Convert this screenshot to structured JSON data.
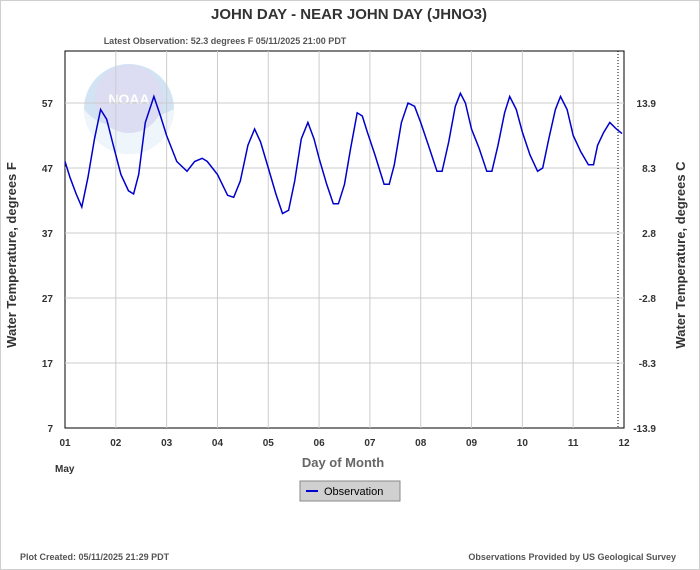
{
  "header": {
    "title": "JOHN DAY - NEAR JOHN DAY  (JHNO3)",
    "latest_observation": "Latest Observation: 52.3 degrees F 05/11/2025 21:00 PDT"
  },
  "footer": {
    "plot_created": "Plot Created: 05/11/2025 21:29 PDT",
    "provider": "Observations Provided by US Geological Survey"
  },
  "logo": {
    "text": "NOAA"
  },
  "colors": {
    "series": "#0000cc",
    "grid": "#cccccc",
    "axis": "#000000",
    "legend_bg": "#d0d0d0"
  },
  "chart_data": {
    "type": "line",
    "xlabel": "Day of Month",
    "x_sublabel": "May",
    "ylabel_left": "Water Temperature, degrees F",
    "ylabel_right": "Water Temperature, degrees C",
    "x_ticks": [
      "01",
      "02",
      "03",
      "04",
      "05",
      "06",
      "07",
      "08",
      "09",
      "10",
      "11",
      "12"
    ],
    "y_ticks_left": [
      "57",
      "47",
      "37",
      "27",
      "17",
      "7"
    ],
    "y_ticks_right": [
      "13.9",
      "8.3",
      "2.8",
      "-2.8",
      "-8.3",
      "-13.9"
    ],
    "xlim": [
      1,
      12
    ],
    "ylim": [
      7,
      65
    ],
    "grid": true,
    "legend": {
      "position": "bottom-center",
      "entries": [
        "Observation"
      ]
    },
    "series": [
      {
        "name": "Observation",
        "points": [
          [
            1.0,
            48.0
          ],
          [
            1.1,
            45.5
          ],
          [
            1.22,
            43.0
          ],
          [
            1.33,
            41.0
          ],
          [
            1.45,
            45.5
          ],
          [
            1.58,
            51.5
          ],
          [
            1.7,
            56.0
          ],
          [
            1.82,
            54.5
          ],
          [
            1.95,
            50.5
          ],
          [
            2.1,
            46.0
          ],
          [
            2.25,
            43.5
          ],
          [
            2.35,
            43.0
          ],
          [
            2.45,
            46.0
          ],
          [
            2.58,
            54.0
          ],
          [
            2.75,
            58.0
          ],
          [
            2.88,
            55.0
          ],
          [
            3.0,
            52.0
          ],
          [
            3.2,
            48.0
          ],
          [
            3.4,
            46.5
          ],
          [
            3.55,
            48.0
          ],
          [
            3.7,
            48.5
          ],
          [
            3.8,
            48.0
          ],
          [
            4.0,
            46.0
          ],
          [
            4.2,
            42.8
          ],
          [
            4.32,
            42.5
          ],
          [
            4.45,
            45.0
          ],
          [
            4.6,
            50.5
          ],
          [
            4.73,
            53.0
          ],
          [
            4.85,
            51.0
          ],
          [
            5.0,
            47.0
          ],
          [
            5.15,
            43.0
          ],
          [
            5.28,
            40.0
          ],
          [
            5.4,
            40.5
          ],
          [
            5.52,
            45.0
          ],
          [
            5.65,
            51.5
          ],
          [
            5.78,
            54.0
          ],
          [
            5.9,
            51.5
          ],
          [
            6.0,
            48.5
          ],
          [
            6.15,
            44.5
          ],
          [
            6.28,
            41.5
          ],
          [
            6.38,
            41.5
          ],
          [
            6.5,
            44.5
          ],
          [
            6.62,
            50.0
          ],
          [
            6.75,
            55.5
          ],
          [
            6.85,
            55.0
          ],
          [
            6.95,
            52.5
          ],
          [
            7.1,
            49.0
          ],
          [
            7.28,
            44.5
          ],
          [
            7.38,
            44.5
          ],
          [
            7.48,
            47.5
          ],
          [
            7.62,
            54.0
          ],
          [
            7.75,
            57.0
          ],
          [
            7.88,
            56.5
          ],
          [
            8.0,
            54.0
          ],
          [
            8.15,
            50.5
          ],
          [
            8.32,
            46.5
          ],
          [
            8.42,
            46.5
          ],
          [
            8.55,
            51.0
          ],
          [
            8.68,
            56.5
          ],
          [
            8.78,
            58.5
          ],
          [
            8.88,
            57.0
          ],
          [
            9.0,
            53.0
          ],
          [
            9.15,
            50.0
          ],
          [
            9.3,
            46.5
          ],
          [
            9.4,
            46.5
          ],
          [
            9.52,
            50.5
          ],
          [
            9.65,
            55.5
          ],
          [
            9.75,
            58.0
          ],
          [
            9.88,
            56.0
          ],
          [
            10.0,
            52.5
          ],
          [
            10.15,
            49.0
          ],
          [
            10.3,
            46.5
          ],
          [
            10.4,
            47.0
          ],
          [
            10.52,
            51.5
          ],
          [
            10.65,
            56.0
          ],
          [
            10.75,
            58.0
          ],
          [
            10.88,
            56.0
          ],
          [
            11.0,
            52.0
          ],
          [
            11.15,
            49.5
          ],
          [
            11.3,
            47.5
          ],
          [
            11.4,
            47.5
          ],
          [
            11.48,
            50.5
          ],
          [
            11.6,
            52.5
          ],
          [
            11.72,
            54.0
          ],
          [
            11.85,
            53.0
          ],
          [
            11.96,
            52.3
          ]
        ]
      }
    ]
  }
}
